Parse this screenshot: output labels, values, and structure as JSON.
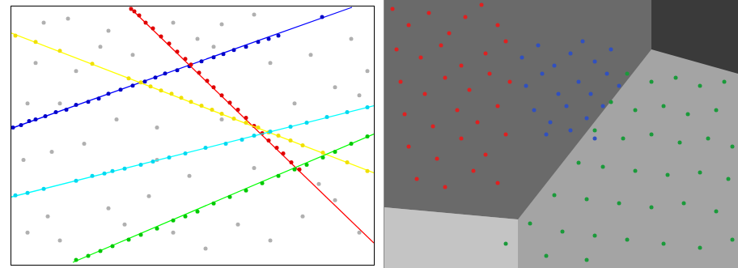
{
  "chart_data": [
    {
      "type": "scatter",
      "xlim": [
        0,
        448
      ],
      "ylim": [
        0,
        320
      ],
      "xticks": [],
      "yticks": [],
      "grid": false,
      "tick_labels": false,
      "series": [
        {
          "type": "scatter",
          "color": "#b0b0b0",
          "x": [
            40,
            70,
            120,
            200,
            260,
            300,
            230,
            30,
            80,
            110,
            150,
            250,
            320,
            370,
            420,
            440,
            15,
            50,
            90,
            130,
            180,
            260,
            400,
            430,
            350,
            20,
            45,
            60,
            120,
            140,
            170,
            200,
            240,
            280,
            320,
            360,
            400,
            430,
            20,
            60,
            180,
            220,
            380,
            300
          ],
          "values": [
            300,
            305,
            290,
            300,
            298,
            310,
            280,
            250,
            240,
            270,
            260,
            270,
            250,
            260,
            280,
            240,
            130,
            140,
            150,
            180,
            170,
            180,
            220,
            210,
            200,
            40,
            60,
            30,
            70,
            50,
            85,
            40,
            20,
            50,
            30,
            60,
            80,
            40,
            200,
            200,
            130,
            110,
            100,
            120
          ]
        },
        {
          "type": "line",
          "color": "#0000ff",
          "x": [
            0,
            421
          ],
          "values": [
            169,
            319
          ]
        },
        {
          "type": "scatter",
          "color": "#0000c8",
          "x": [
            2,
            12,
            22,
            30,
            42,
            55,
            68,
            80,
            95,
            108,
            120,
            135,
            150,
            165,
            178,
            190,
            205,
            220,
            235,
            250,
            262,
            275,
            290,
            305,
            318,
            330,
            384
          ],
          "values": [
            170,
            173,
            178,
            180,
            184,
            189,
            192,
            198,
            202,
            206,
            212,
            217,
            222,
            227,
            232,
            237,
            241,
            246,
            252,
            257,
            261,
            266,
            270,
            276,
            280,
            284,
            307
          ]
        },
        {
          "type": "line",
          "color": "#ff0000",
          "x": [
            146,
            448
          ],
          "values": [
            319,
            27
          ]
        },
        {
          "type": "scatter",
          "color": "#e00000",
          "x": [
            148,
            152,
            158,
            166,
            175,
            185,
            195,
            205,
            215,
            222,
            232,
            242,
            250,
            260,
            270,
            280,
            290,
            300,
            310,
            318,
            328,
            336,
            346,
            356
          ],
          "values": [
            317,
            314,
            309,
            300,
            293,
            283,
            274,
            264,
            255,
            248,
            238,
            228,
            220,
            210,
            201,
            192,
            182,
            172,
            163,
            154,
            145,
            138,
            127,
            118
          ]
        },
        {
          "type": "line",
          "color": "#ffff00",
          "x": [
            0,
            448
          ],
          "values": [
            287,
            114
          ]
        },
        {
          "type": "scatter",
          "color": "#f0e000",
          "x": [
            5,
            30,
            60,
            100,
            145,
            160,
            172,
            185,
            198,
            210,
            222,
            235,
            248,
            260,
            275,
            290,
            305,
            318,
            330,
            345,
            360,
            385,
            415,
            440
          ],
          "values": [
            284,
            276,
            265,
            249,
            231,
            226,
            221,
            216,
            212,
            207,
            202,
            197,
            192,
            187,
            181,
            176,
            170,
            164,
            160,
            154,
            148,
            139,
            127,
            116
          ]
        },
        {
          "type": "line",
          "color": "#00ffff",
          "x": [
            0,
            448
          ],
          "values": [
            84,
            197
          ]
        },
        {
          "type": "scatter",
          "color": "#00d8f0",
          "x": [
            5,
            20,
            40,
            80,
            100,
            115,
            125,
            140,
            160,
            175,
            195,
            215,
            240,
            265,
            285,
            300,
            320,
            345,
            365,
            390,
            415,
            440
          ],
          "values": [
            86,
            89,
            94,
            104,
            110,
            113,
            116,
            119,
            124,
            128,
            133,
            138,
            145,
            150,
            155,
            160,
            165,
            171,
            176,
            183,
            189,
            195
          ]
        },
        {
          "type": "line",
          "color": "#00ff00",
          "x": [
            76,
            448
          ],
          "values": [
            3,
            162
          ]
        },
        {
          "type": "scatter",
          "color": "#00c800",
          "x": [
            80,
            95,
            110,
            125,
            145,
            160,
            180,
            200,
            215,
            230,
            250,
            270,
            290,
            310,
            330,
            350,
            365,
            385,
            400,
            420,
            440
          ],
          "values": [
            6,
            11,
            17,
            23,
            31,
            37,
            45,
            55,
            60,
            66,
            76,
            84,
            92,
            101,
            110,
            118,
            124,
            133,
            140,
            150,
            159
          ]
        }
      ]
    },
    {
      "type": "scatter",
      "xlim": [
        0,
        437
      ],
      "ylim": [
        0,
        331
      ],
      "xticks": [],
      "yticks": [],
      "grid": false,
      "tick_labels": false,
      "series": [
        {
          "type": "scatter",
          "color": "#e02020",
          "x": [
            10,
            30,
            55,
            80,
            100,
            120,
            140,
            15,
            45,
            70,
            95,
            125,
            150,
            20,
            50,
            75,
            105,
            130,
            155,
            25,
            60,
            90,
            115,
            140,
            30,
            65,
            95,
            125,
            150,
            40,
            75,
            110,
            140
          ],
          "values": [
            320,
            300,
            315,
            290,
            310,
            325,
            300,
            270,
            260,
            275,
            250,
            265,
            280,
            230,
            215,
            235,
            220,
            240,
            230,
            190,
            175,
            195,
            180,
            200,
            150,
            135,
            160,
            140,
            165,
            110,
            100,
            120,
            105
          ]
        },
        {
          "type": "scatter",
          "color": "#3050c0",
          "x": [
            170,
            190,
            210,
            230,
            245,
            260,
            280,
            175,
            195,
            215,
            240,
            255,
            275,
            290,
            185,
            205,
            225,
            250,
            270,
            200,
            230,
            260
          ],
          "values": [
            260,
            275,
            250,
            265,
            280,
            255,
            270,
            225,
            240,
            215,
            230,
            215,
            240,
            225,
            195,
            180,
            200,
            185,
            200,
            165,
            170,
            160
          ]
        },
        {
          "type": "scatter",
          "color": "#1a9a3a",
          "x": [
            300,
            330,
            360,
            390,
            420,
            280,
            310,
            345,
            375,
            410,
            260,
            295,
            330,
            365,
            400,
            430,
            240,
            270,
            310,
            350,
            390,
            425,
            210,
            250,
            290,
            330,
            370,
            410,
            180,
            220,
            260,
            300,
            345,
            390,
            430,
            150,
            200,
            250
          ],
          "values": [
            240,
            230,
            235,
            225,
            230,
            205,
            195,
            200,
            190,
            195,
            170,
            160,
            165,
            155,
            160,
            150,
            130,
            125,
            120,
            115,
            118,
            110,
            90,
            85,
            80,
            75,
            80,
            70,
            55,
            45,
            40,
            35,
            30,
            25,
            35,
            30,
            15,
            10
          ]
        }
      ]
    }
  ]
}
